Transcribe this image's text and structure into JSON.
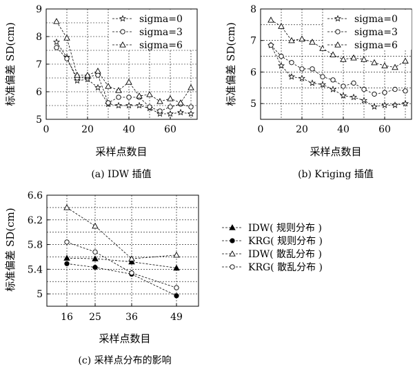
{
  "chart_data": [
    {
      "type": "line",
      "xlabel": "采样点数目",
      "ylabel": "标准偏差 SD(cm)",
      "caption": "(a) IDW 插值",
      "xlim": [
        0,
        73
      ],
      "ylim": [
        5,
        9
      ],
      "xticks": [
        "0",
        "20",
        "40",
        "60"
      ],
      "yticks": [
        "5",
        "6",
        "7",
        "8",
        "9"
      ],
      "grid": true,
      "legend_position": "top-right",
      "x": [
        5,
        10,
        15,
        20,
        25,
        30,
        35,
        40,
        45,
        50,
        55,
        60,
        65,
        70
      ],
      "series": [
        {
          "name": "sigma=0",
          "marker": "star",
          "values": [
            7.8,
            7.25,
            6.4,
            6.45,
            6.15,
            5.55,
            5.5,
            5.5,
            5.5,
            5.4,
            5.2,
            5.2,
            5.25,
            5.2
          ]
        },
        {
          "name": "sigma=3",
          "marker": "circle",
          "values": [
            7.6,
            7.2,
            6.5,
            6.55,
            6.6,
            5.6,
            5.8,
            5.8,
            5.8,
            5.45,
            5.3,
            5.45,
            5.55,
            5.45
          ]
        },
        {
          "name": "sigma=6",
          "marker": "triangle",
          "values": [
            8.55,
            7.95,
            6.6,
            6.6,
            6.75,
            6.2,
            6.05,
            6.35,
            5.85,
            5.9,
            5.65,
            5.75,
            5.6,
            6.15
          ]
        }
      ]
    },
    {
      "type": "line",
      "xlabel": "采样点数目",
      "ylabel": "标准偏差 SD(cm)",
      "caption": "(b) Kriging 插值",
      "xlim": [
        0,
        73
      ],
      "ylim": [
        4.5,
        8
      ],
      "xticks": [
        "0",
        "20",
        "40",
        "60"
      ],
      "yticks": [
        "5",
        "6",
        "7",
        "8"
      ],
      "grid": true,
      "legend_position": "top-right",
      "x": [
        5,
        10,
        15,
        20,
        25,
        30,
        35,
        40,
        45,
        50,
        55,
        60,
        65,
        70
      ],
      "series": [
        {
          "name": "sigma=0",
          "marker": "star",
          "values": [
            6.85,
            6.2,
            5.85,
            5.8,
            5.65,
            5.6,
            5.45,
            5.25,
            5.2,
            5.1,
            4.9,
            4.95,
            4.95,
            5.0
          ]
        },
        {
          "name": "sigma=3",
          "marker": "circle",
          "values": [
            6.85,
            6.5,
            6.3,
            6.1,
            6.1,
            5.85,
            5.75,
            5.55,
            5.65,
            5.45,
            5.3,
            5.35,
            5.45,
            5.4
          ]
        },
        {
          "name": "sigma=6",
          "marker": "triangle",
          "values": [
            7.65,
            7.45,
            7.0,
            7.05,
            6.95,
            6.75,
            6.55,
            6.4,
            6.45,
            6.4,
            6.3,
            6.2,
            6.15,
            6.35
          ]
        }
      ]
    },
    {
      "type": "line",
      "xlabel": "采样点数目",
      "ylabel": "标准偏差 SD(cm)",
      "caption": "(c) 采样点分布的影响",
      "categories": [
        "16",
        "25",
        "36",
        "49"
      ],
      "ylim": [
        4.8,
        6.6
      ],
      "yticks": [
        "6.6",
        "6.2",
        "5.8",
        "5.4",
        "5"
      ],
      "grid": true,
      "legend_position": "right",
      "series": [
        {
          "name": "IDW( 规则分布 )",
          "marker": "triangle-filled",
          "values": [
            5.58,
            5.57,
            5.52,
            5.42
          ]
        },
        {
          "name": "KRG( 规则分布 )",
          "marker": "circle-filled",
          "values": [
            5.49,
            5.43,
            5.32,
            4.97
          ]
        },
        {
          "name": "IDW( 散乱分布 )",
          "marker": "triangle",
          "values": [
            6.4,
            6.1,
            5.57,
            5.63
          ]
        },
        {
          "name": "KRG( 散乱分布 )",
          "marker": "circle",
          "values": [
            5.84,
            5.68,
            5.34,
            5.1
          ]
        }
      ]
    }
  ]
}
